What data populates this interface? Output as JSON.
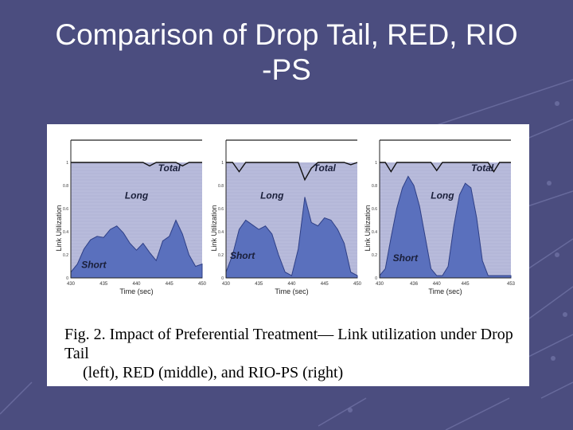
{
  "slide": {
    "title_line1": "Comparison of Drop Tail, RED, RIO",
    "title_line2": "-PS"
  },
  "caption": {
    "line1": "Fig. 2.  Impact of Preferential Treatment— Link utilization under Drop Tail",
    "line2": "(left), RED (middle), and RIO-PS (right)"
  },
  "colors": {
    "background": "#4b4d7f",
    "plot_area": "#b4b7d8",
    "short_fill": "#5a70bd",
    "total_line": "#111111",
    "panel": "#ffffff"
  },
  "chart_data": [
    {
      "type": "area",
      "xlabel": "Time (sec)",
      "ylabel": "Link Utilization",
      "xlim": [
        430,
        450
      ],
      "ylim": [
        0,
        1
      ],
      "xticks": [
        "430",
        "435",
        "440",
        "445",
        "450"
      ],
      "yticks": [
        "0",
        "0.2",
        "0.4",
        "0.6",
        "0.8",
        "1"
      ],
      "x": [
        430,
        431,
        432,
        433,
        434,
        435,
        436,
        437,
        438,
        439,
        440,
        441,
        442,
        443,
        444,
        445,
        446,
        447,
        448,
        449,
        450
      ],
      "series": [
        {
          "name": "Total",
          "values": [
            1,
            1,
            1,
            1,
            1,
            1,
            1,
            1,
            1,
            1,
            1,
            1,
            0.97,
            1,
            1,
            1,
            1,
            0.97,
            1,
            1,
            1
          ]
        },
        {
          "name": "Short",
          "values": [
            0.05,
            0.12,
            0.25,
            0.33,
            0.36,
            0.35,
            0.42,
            0.45,
            0.39,
            0.3,
            0.24,
            0.3,
            0.22,
            0.15,
            0.32,
            0.36,
            0.5,
            0.38,
            0.2,
            0.1,
            0.12
          ]
        },
        {
          "name": "Long",
          "values": [
            0.95,
            0.88,
            0.75,
            0.67,
            0.64,
            0.65,
            0.58,
            0.55,
            0.61,
            0.7,
            0.76,
            0.7,
            0.75,
            0.85,
            0.68,
            0.64,
            0.5,
            0.59,
            0.8,
            0.9,
            0.88
          ]
        }
      ]
    },
    {
      "type": "area",
      "xlabel": "Time (sec)",
      "ylabel": "Link Utilization",
      "xlim": [
        430,
        450
      ],
      "ylim": [
        0,
        1
      ],
      "xticks": [
        "430",
        "435",
        "440",
        "445",
        "450"
      ],
      "yticks": [
        "0",
        "0.2",
        "0.4",
        "0.6",
        "0.8",
        "1"
      ],
      "x": [
        430,
        431,
        432,
        433,
        434,
        435,
        436,
        437,
        438,
        439,
        440,
        441,
        442,
        443,
        444,
        445,
        446,
        447,
        448,
        449,
        450
      ],
      "series": [
        {
          "name": "Total",
          "values": [
            1,
            1,
            0.92,
            1,
            1,
            1,
            1,
            1,
            1,
            1,
            1,
            1,
            0.85,
            0.95,
            1,
            1,
            1,
            1,
            1,
            0.98,
            1
          ]
        },
        {
          "name": "Short",
          "values": [
            0.05,
            0.2,
            0.42,
            0.5,
            0.46,
            0.42,
            0.45,
            0.38,
            0.2,
            0.05,
            0.02,
            0.25,
            0.7,
            0.48,
            0.45,
            0.52,
            0.5,
            0.42,
            0.3,
            0.05,
            0.02
          ]
        },
        {
          "name": "Long",
          "values": [
            0.95,
            0.8,
            0.5,
            0.5,
            0.54,
            0.58,
            0.55,
            0.62,
            0.8,
            0.95,
            0.98,
            0.75,
            0.15,
            0.47,
            0.55,
            0.48,
            0.5,
            0.58,
            0.7,
            0.93,
            0.98
          ]
        }
      ]
    },
    {
      "type": "area",
      "xlabel": "Time (sec)",
      "ylabel": "Link Utilization",
      "xlim": [
        430,
        453
      ],
      "ylim": [
        0,
        1
      ],
      "xticks": [
        "430",
        "436",
        "440",
        "445",
        "453"
      ],
      "yticks": [
        "0",
        "0.2",
        "0.4",
        "0.6",
        "0.8",
        "1"
      ],
      "x": [
        430,
        431,
        432,
        433,
        434,
        435,
        436,
        437,
        438,
        439,
        440,
        441,
        442,
        443,
        444,
        445,
        446,
        447,
        448,
        449,
        450,
        451,
        452,
        453
      ],
      "series": [
        {
          "name": "Total",
          "values": [
            1,
            1,
            0.92,
            1,
            1,
            1,
            1,
            1,
            1,
            1,
            0.93,
            1,
            1,
            1,
            1,
            1,
            1,
            1,
            1,
            1,
            0.92,
            1,
            1,
            1
          ]
        },
        {
          "name": "Short",
          "values": [
            0.02,
            0.08,
            0.35,
            0.6,
            0.78,
            0.88,
            0.8,
            0.62,
            0.35,
            0.08,
            0.02,
            0.02,
            0.1,
            0.45,
            0.72,
            0.82,
            0.78,
            0.52,
            0.15,
            0.02,
            0.02,
            0.02,
            0.02,
            0.02
          ]
        },
        {
          "name": "Long",
          "values": [
            0.98,
            0.92,
            0.57,
            0.4,
            0.22,
            0.12,
            0.2,
            0.38,
            0.65,
            0.92,
            0.91,
            0.98,
            0.9,
            0.55,
            0.28,
            0.18,
            0.22,
            0.48,
            0.85,
            0.98,
            0.9,
            0.98,
            0.98,
            0.98
          ]
        }
      ]
    }
  ]
}
